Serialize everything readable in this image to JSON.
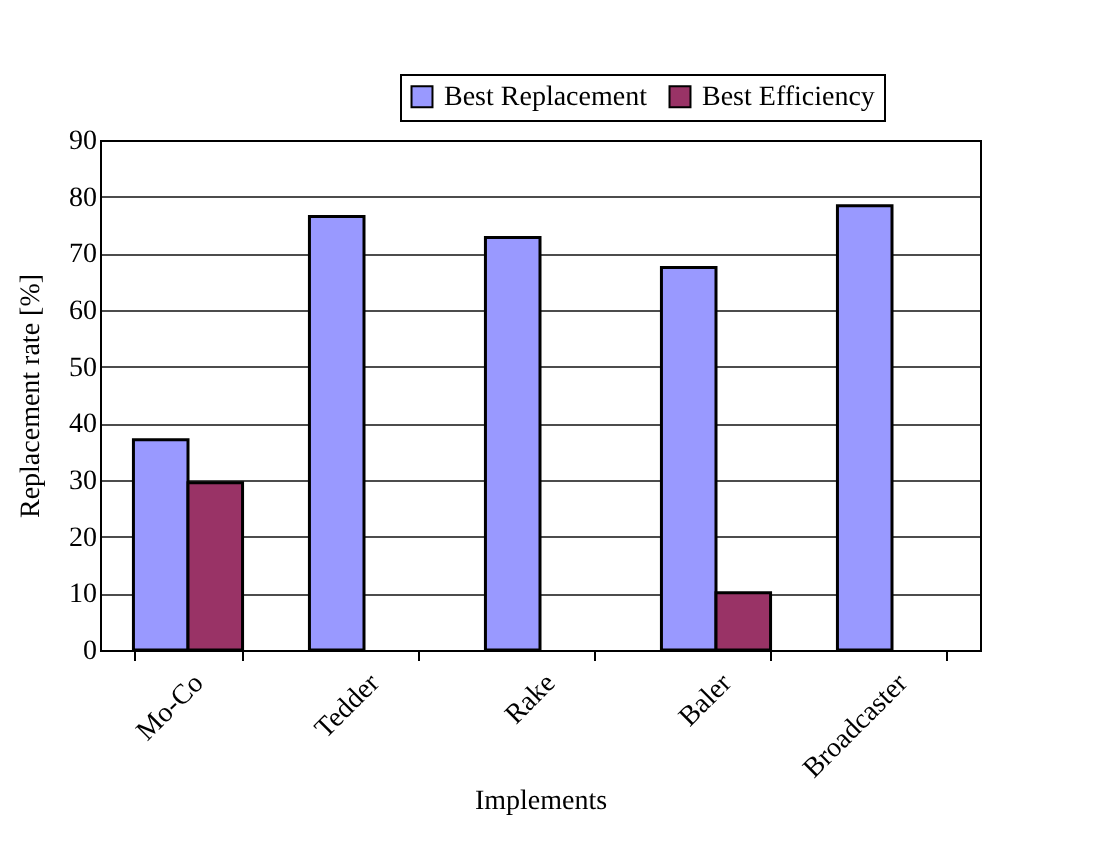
{
  "chart_data": {
    "type": "bar",
    "xlabel": "Implements",
    "ylabel": "Replacement rate [%]",
    "categories": [
      "Mo-Co",
      "Tedder",
      "Rake",
      "Baler",
      "Broadcaster"
    ],
    "series": [
      {
        "name": "Best Replacement",
        "color": "#9999ff",
        "values": [
          37.1,
          76.5,
          72.8,
          67.5,
          78.4
        ]
      },
      {
        "name": "Best Efficiency",
        "color": "#993366",
        "values": [
          29.5,
          null,
          null,
          10.1,
          null
        ]
      }
    ],
    "ylim": [
      0,
      90
    ],
    "yticks": [
      0,
      10,
      20,
      30,
      40,
      50,
      60,
      70,
      80,
      90
    ],
    "grid": "y",
    "legend": "top right"
  }
}
